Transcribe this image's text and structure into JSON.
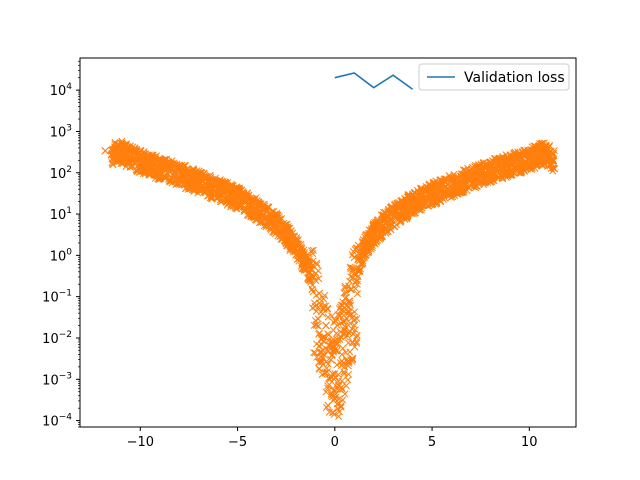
{
  "chart_data": {
    "type": "scatter",
    "title": "",
    "xlabel": "",
    "ylabel": "",
    "yscale": "log",
    "xlim": [
      -13.1,
      12.4
    ],
    "ylim": [
      7e-05,
      60000
    ],
    "xticks": [
      -10,
      -5,
      0,
      5,
      10
    ],
    "xtick_labels": [
      "−10",
      "−5",
      "0",
      "5",
      "10"
    ],
    "yticks": [
      0.0001,
      0.001,
      0.01,
      0.1,
      1,
      10,
      100,
      1000,
      10000
    ],
    "ytick_labels": [
      {
        "base": "10",
        "exp": "−4"
      },
      {
        "base": "10",
        "exp": "−3"
      },
      {
        "base": "10",
        "exp": "−2"
      },
      {
        "base": "10",
        "exp": "−1"
      },
      {
        "base": "10",
        "exp": "0"
      },
      {
        "base": "10",
        "exp": "1"
      },
      {
        "base": "10",
        "exp": "2"
      },
      {
        "base": "10",
        "exp": "3"
      },
      {
        "base": "10",
        "exp": "4"
      }
    ],
    "grid": false,
    "legend_position": "top-right",
    "series": [
      {
        "name": "Validation loss",
        "kind": "line",
        "color": "#1f77b4",
        "x": [
          0,
          1,
          2,
          3,
          4
        ],
        "y": [
          20000,
          26000,
          11500,
          23000,
          10500
        ]
      },
      {
        "kind": "scatter",
        "marker": "x",
        "color": "#ff7f0e",
        "x": [
          -11.8,
          -11.3,
          -11.1,
          -10.7,
          -10.3,
          -9.9,
          -9.5,
          -9.0,
          -8.5,
          -8.0,
          -7.5,
          -7.0,
          -6.5,
          -6.0,
          -5.5,
          -5.0,
          -4.5,
          -4.0,
          -3.5,
          -3.0,
          -2.5,
          -2.0,
          -1.5,
          -1.2,
          -1.0,
          -0.8,
          -0.6,
          -0.45,
          -0.3,
          -0.15,
          0.0,
          0.15,
          0.3,
          0.45,
          0.6,
          0.8,
          1.0,
          1.2,
          1.5,
          2.0,
          2.5,
          3.0,
          3.5,
          4.0,
          4.5,
          5.0,
          5.5,
          6.0,
          6.5,
          7.0,
          7.5,
          8.0,
          8.5,
          9.0,
          9.5,
          10.0,
          10.4,
          10.8,
          11.1,
          11.2,
          -0.4,
          -0.2,
          0.7,
          0.9,
          -0.1,
          0.2
        ],
        "y": [
          340,
          420,
          480,
          360,
          300,
          250,
          210,
          180,
          150,
          125,
          100,
          82,
          66,
          53,
          42,
          33,
          25,
          18,
          12,
          8,
          4.5,
          2.2,
          0.9,
          0.45,
          0.25,
          0.12,
          0.05,
          0.02,
          0.012,
          0.008,
          0.006,
          0.009,
          0.014,
          0.025,
          0.06,
          0.15,
          0.35,
          0.8,
          2.0,
          4.5,
          8,
          12,
          18,
          25,
          33,
          42,
          53,
          66,
          82,
          100,
          125,
          150,
          180,
          210,
          250,
          300,
          350,
          420,
          330,
          270,
          0.0015,
          0.003,
          0.0028,
          0.0032,
          0.00016,
          0.0007
        ]
      }
    ]
  }
}
